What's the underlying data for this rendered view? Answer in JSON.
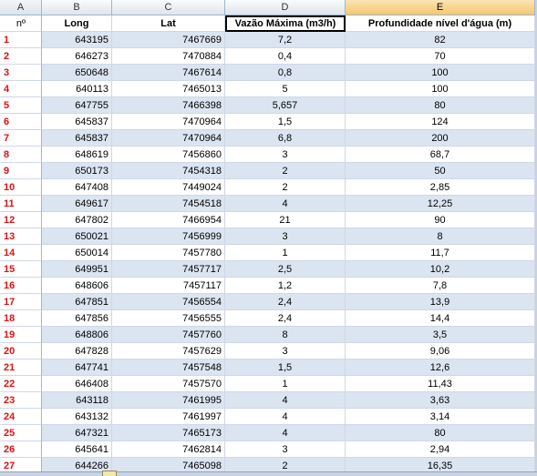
{
  "columns": [
    "A",
    "B",
    "C",
    "D",
    "E"
  ],
  "selected_column": "E",
  "headers": {
    "a": "nº",
    "b": "Long",
    "c": "Lat",
    "d": "Vazão Máxima (m3/h)",
    "e": "Profundidade nível d'água (m)"
  },
  "rows": [
    {
      "n": "1",
      "long": "643195",
      "lat": "7467669",
      "vazao": "7,2",
      "prof": "82"
    },
    {
      "n": "2",
      "long": "646273",
      "lat": "7470884",
      "vazao": "0,4",
      "prof": "70"
    },
    {
      "n": "3",
      "long": "650648",
      "lat": "7467614",
      "vazao": "0,8",
      "prof": "100"
    },
    {
      "n": "4",
      "long": "640113",
      "lat": "7465013",
      "vazao": "5",
      "prof": "100"
    },
    {
      "n": "5",
      "long": "647755",
      "lat": "7466398",
      "vazao": "5,657",
      "prof": "80"
    },
    {
      "n": "6",
      "long": "645837",
      "lat": "7470964",
      "vazao": "1,5",
      "prof": "124"
    },
    {
      "n": "7",
      "long": "645837",
      "lat": "7470964",
      "vazao": "6,8",
      "prof": "200"
    },
    {
      "n": "8",
      "long": "648619",
      "lat": "7456860",
      "vazao": "3",
      "prof": "68,7"
    },
    {
      "n": "9",
      "long": "650173",
      "lat": "7454318",
      "vazao": "2",
      "prof": "50"
    },
    {
      "n": "10",
      "long": "647408",
      "lat": "7449024",
      "vazao": "2",
      "prof": "2,85"
    },
    {
      "n": "11",
      "long": "649617",
      "lat": "7454518",
      "vazao": "4",
      "prof": "12,25"
    },
    {
      "n": "12",
      "long": "647802",
      "lat": "7466954",
      "vazao": "21",
      "prof": "90"
    },
    {
      "n": "13",
      "long": "650021",
      "lat": "7456999",
      "vazao": "3",
      "prof": "8"
    },
    {
      "n": "14",
      "long": "650014",
      "lat": "7457780",
      "vazao": "1",
      "prof": "11,7"
    },
    {
      "n": "15",
      "long": "649951",
      "lat": "7457717",
      "vazao": "2,5",
      "prof": "10,2"
    },
    {
      "n": "16",
      "long": "648606",
      "lat": "7457117",
      "vazao": "1,2",
      "prof": "7,8"
    },
    {
      "n": "17",
      "long": "647851",
      "lat": "7456554",
      "vazao": "2,4",
      "prof": "13,9"
    },
    {
      "n": "18",
      "long": "647856",
      "lat": "7456555",
      "vazao": "2,4",
      "prof": "14,4"
    },
    {
      "n": "19",
      "long": "648806",
      "lat": "7457760",
      "vazao": "8",
      "prof": "3,5"
    },
    {
      "n": "20",
      "long": "647828",
      "lat": "7457629",
      "vazao": "3",
      "prof": "9,06"
    },
    {
      "n": "21",
      "long": "647741",
      "lat": "7457548",
      "vazao": "1,5",
      "prof": "12,6"
    },
    {
      "n": "22",
      "long": "646408",
      "lat": "7457570",
      "vazao": "1",
      "prof": "11,43"
    },
    {
      "n": "23",
      "long": "643118",
      "lat": "7461995",
      "vazao": "4",
      "prof": "3,63"
    },
    {
      "n": "24",
      "long": "643132",
      "lat": "7461997",
      "vazao": "4",
      "prof": "3,14"
    },
    {
      "n": "25",
      "long": "647321",
      "lat": "7465173",
      "vazao": "4",
      "prof": "80"
    },
    {
      "n": "26",
      "long": "645641",
      "lat": "7462814",
      "vazao": "3",
      "prof": "2,94"
    },
    {
      "n": "27",
      "long": "644266",
      "lat": "7465098",
      "vazao": "2",
      "prof": "16,35"
    }
  ]
}
